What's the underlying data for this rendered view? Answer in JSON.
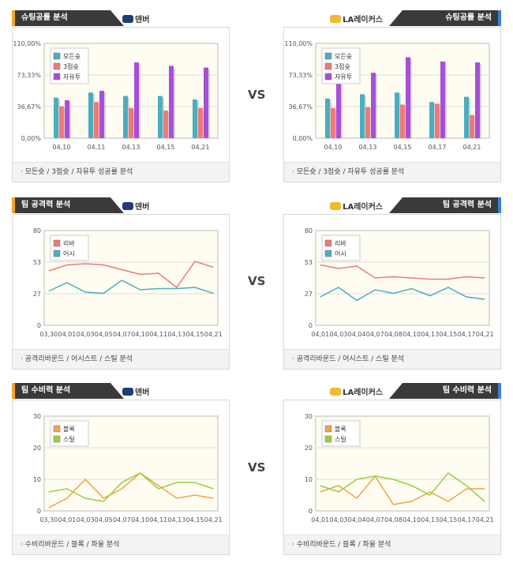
{
  "colors": {
    "total": "#4aaebe",
    "three": "#f07878",
    "ft": "#a84ed8",
    "reb": "#f07878",
    "ast": "#4aaebe",
    "blk": "#f5a04a",
    "stl": "#98d040"
  },
  "vs_label": "VS",
  "sections": [
    {
      "left": {
        "tab": "슈팅공률 분석",
        "team": "덴버",
        "foot": "모든슛 / 3점슛 / 자유투 성공률 분석"
      },
      "right": {
        "tab": "슈팅공률 분석",
        "team": "LA레이커스",
        "foot": "모든슛 / 3점슛 / 자유투 성공률 분석"
      }
    },
    {
      "left": {
        "tab": "팀 공격력 분석",
        "team": "덴버",
        "foot": "공격리바운드 / 어시스트 / 스틸 분석"
      },
      "right": {
        "tab": "팀 공격력 분석",
        "team": "LA레이커스",
        "foot": "공격리바운드 / 어시스트 / 스틸 분석"
      }
    },
    {
      "left": {
        "tab": "팀 수비력 분석",
        "team": "덴버",
        "foot": "수비리바운드 / 블록 / 파울 분석"
      },
      "right": {
        "tab": "팀 수비력 분석",
        "team": "LA레이커스",
        "foot": "수비리바운드 / 블록 / 파울 분석"
      }
    }
  ],
  "chart_data": [
    {
      "type": "bar",
      "id": "shoot-den",
      "ylim": [
        0,
        110
      ],
      "yticks": [
        "0,00%",
        "36,67%",
        "73,33%",
        "110,00%"
      ],
      "categories": [
        "04,10",
        "04,11",
        "04,13",
        "04,15",
        "04,21"
      ],
      "series": [
        {
          "name": "모든슛",
          "color": "total",
          "values": [
            47,
            53,
            49,
            49,
            45
          ]
        },
        {
          "name": "3점슛",
          "color": "three",
          "values": [
            37,
            42,
            35,
            32,
            35
          ]
        },
        {
          "name": "자유투",
          "color": "ft",
          "values": [
            44,
            55,
            88,
            84,
            82
          ]
        }
      ]
    },
    {
      "type": "bar",
      "id": "shoot-lal",
      "ylim": [
        0,
        110
      ],
      "yticks": [
        "0,00%",
        "36,67%",
        "73,33%",
        "110,00%"
      ],
      "categories": [
        "04,10",
        "04,13",
        "04,15",
        "04,17",
        "04,21"
      ],
      "series": [
        {
          "name": "모든슛",
          "color": "total",
          "values": [
            46,
            51,
            53,
            42,
            48
          ]
        },
        {
          "name": "3점슛",
          "color": "three",
          "values": [
            35,
            36,
            39,
            40,
            27
          ]
        },
        {
          "name": "자유투",
          "color": "ft",
          "values": [
            82,
            76,
            94,
            89,
            88
          ]
        }
      ]
    },
    {
      "type": "line",
      "id": "off-den",
      "ylim": [
        0,
        80
      ],
      "yticks": [
        "0",
        "27",
        "53",
        "80"
      ],
      "categories": [
        "03,30",
        "04,01",
        "04,03",
        "04,05",
        "04,07",
        "04,10",
        "04,11",
        "04,13",
        "04,15",
        "04,21"
      ],
      "series": [
        {
          "name": "리바",
          "color": "reb",
          "values": [
            46,
            51,
            52,
            51,
            47,
            43,
            44,
            32,
            54,
            49
          ]
        },
        {
          "name": "어시",
          "color": "ast",
          "values": [
            29,
            36,
            28,
            27,
            38,
            30,
            31,
            31,
            32,
            27
          ]
        }
      ]
    },
    {
      "type": "line",
      "id": "off-lal",
      "ylim": [
        0,
        80
      ],
      "yticks": [
        "0",
        "27",
        "53",
        "80"
      ],
      "categories": [
        "04,01",
        "04,03",
        "04,04",
        "04,07",
        "04,08",
        "04,10",
        "04,13",
        "04,15",
        "04,17",
        "04,21"
      ],
      "series": [
        {
          "name": "리바",
          "color": "reb",
          "values": [
            51,
            48,
            50,
            40,
            41,
            40,
            39,
            39,
            41,
            40
          ]
        },
        {
          "name": "어시",
          "color": "ast",
          "values": [
            24,
            32,
            21,
            30,
            27,
            31,
            25,
            32,
            24,
            22
          ]
        }
      ]
    },
    {
      "type": "line",
      "id": "def-den",
      "ylim": [
        0,
        30
      ],
      "yticks": [
        "0",
        "10",
        "20",
        "30"
      ],
      "categories": [
        "03,30",
        "04,01",
        "04,03",
        "04,05",
        "04,07",
        "04,10",
        "04,11",
        "04,13",
        "04,15",
        "04,21"
      ],
      "series": [
        {
          "name": "블록",
          "color": "blk",
          "values": [
            1,
            4,
            10,
            4,
            7,
            12,
            8,
            4,
            5,
            4
          ]
        },
        {
          "name": "스틸",
          "color": "stl",
          "values": [
            6,
            7,
            4,
            3,
            9,
            12,
            7,
            9,
            9,
            7
          ]
        }
      ]
    },
    {
      "type": "line",
      "id": "def-lal",
      "ylim": [
        0,
        30
      ],
      "yticks": [
        "0",
        "10",
        "20",
        "30"
      ],
      "categories": [
        "04,01",
        "04,03",
        "04,04",
        "04,07",
        "04,08",
        "04,10",
        "04,13",
        "04,15",
        "04,17",
        "04,21"
      ],
      "series": [
        {
          "name": "블록",
          "color": "blk",
          "values": [
            6,
            8,
            4,
            11,
            2,
            3,
            6,
            3,
            7,
            7
          ]
        },
        {
          "name": "스틸",
          "color": "stl",
          "values": [
            8,
            6,
            10,
            11,
            10,
            8,
            5,
            12,
            8,
            3
          ]
        }
      ]
    }
  ]
}
